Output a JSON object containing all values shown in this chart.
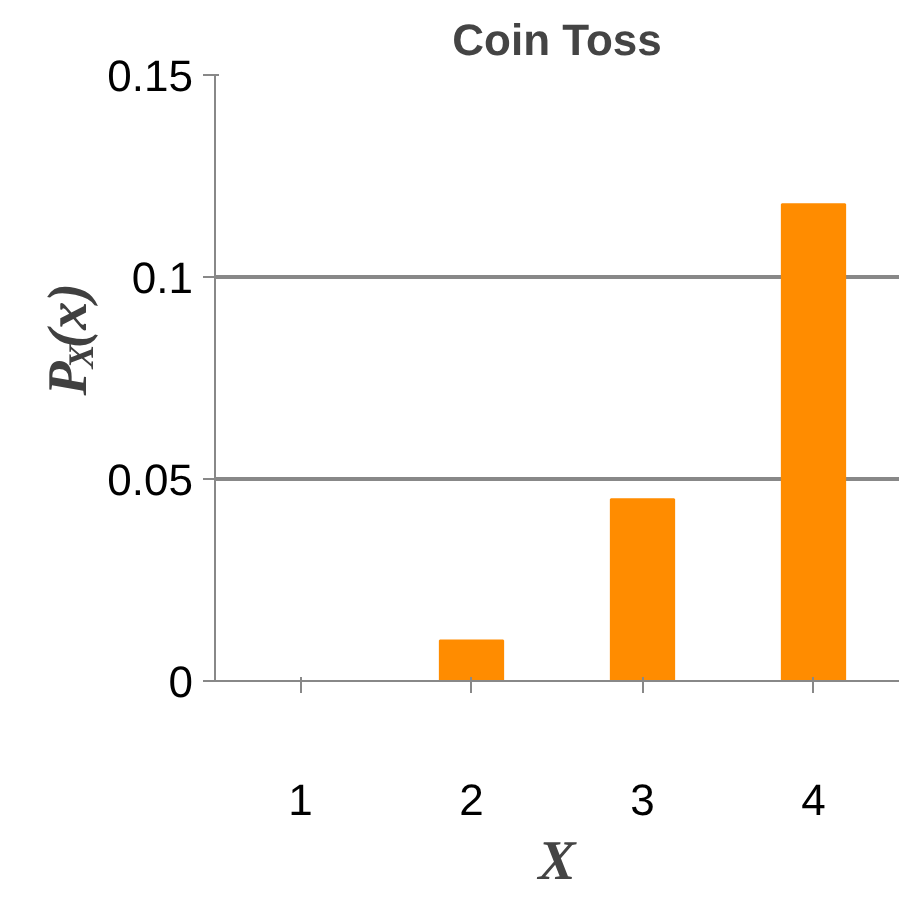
{
  "chart_data": {
    "type": "bar",
    "title": "Coin Toss",
    "xlabel": "X",
    "ylabel": "P$_{X}$(x)",
    "categories": [
      "1",
      "2",
      "3",
      "4"
    ],
    "values": [
      0,
      0.01,
      0.045,
      0.118
    ],
    "color": "#ff8c00",
    "ylim": [
      0,
      0.15
    ],
    "yticks": [
      0,
      0.05,
      0.1,
      0.15
    ],
    "grid": "y"
  }
}
